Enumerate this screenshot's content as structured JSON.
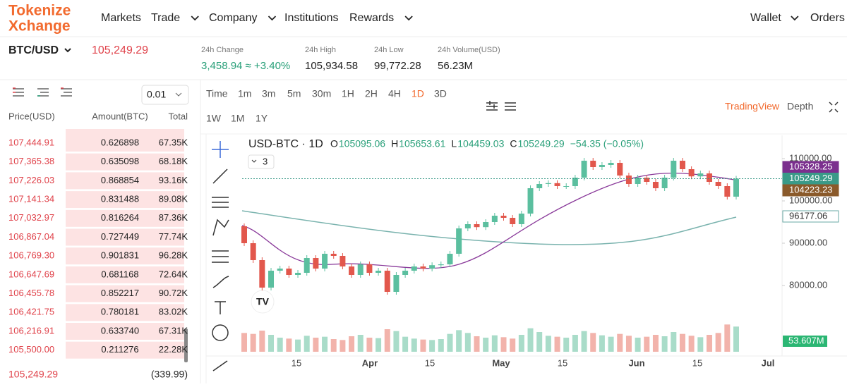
{
  "header": {
    "logo": [
      "Tokenize",
      "Xchange"
    ],
    "nav": [
      {
        "label": "Markets",
        "menu": false
      },
      {
        "label": "Trade",
        "menu": true
      },
      {
        "label": "Company",
        "menu": true
      },
      {
        "label": "Institutions",
        "menu": false
      },
      {
        "label": "Rewards",
        "menu": true
      }
    ],
    "right": [
      {
        "label": "Wallet",
        "menu": true
      },
      {
        "label": "Orders",
        "menu": false
      }
    ]
  },
  "ticker": {
    "pair": "BTC/USD",
    "price": "105,249.29",
    "stats": [
      {
        "label": "24h Change",
        "value": "3,458.94 ≈ +3.40%"
      },
      {
        "label": "24h High",
        "value": "105,934.58"
      },
      {
        "label": "24h Low",
        "value": "99,772.28"
      },
      {
        "label": "24h Volume(USD)",
        "value": "56.23M"
      }
    ]
  },
  "orderbook": {
    "tick": "0.01",
    "columns": [
      "Price(USD)",
      "Amount(BTC)",
      "Total"
    ],
    "rows": [
      [
        "107,444.91",
        "0.626898",
        "67.35K"
      ],
      [
        "107,365.38",
        "0.635098",
        "68.18K"
      ],
      [
        "107,226.03",
        "0.868854",
        "93.16K"
      ],
      [
        "107,141.34",
        "0.831488",
        "89.08K"
      ],
      [
        "107,032.97",
        "0.816264",
        "87.36K"
      ],
      [
        "106,867.04",
        "0.727449",
        "77.74K"
      ],
      [
        "106,769.30",
        "0.901831",
        "96.28K"
      ],
      [
        "106,647.69",
        "0.681168",
        "72.64K"
      ],
      [
        "106,455.78",
        "0.852217",
        "90.72K"
      ],
      [
        "106,421.75",
        "0.780181",
        "83.02K"
      ],
      [
        "106,216.91",
        "0.633740",
        "67.31K"
      ],
      [
        "105,500.00",
        "0.211276",
        "22.28K"
      ]
    ],
    "last_price": "105,249.29",
    "spread": "(339.99)"
  },
  "chart": {
    "intervals": [
      "Time",
      "1m",
      "3m",
      "5m",
      "30m",
      "1H",
      "2H",
      "4H",
      "1D",
      "3D"
    ],
    "intervals_more": [
      "1W",
      "1M",
      "1Y"
    ],
    "active_interval": 8,
    "views": [
      "TradingView",
      "Depth"
    ],
    "symbol": "USD-BTC · 1D",
    "ohlc": [
      {
        "k": "O",
        "v": "105095.06"
      },
      {
        "k": "H",
        "v": "105653.61"
      },
      {
        "k": "L",
        "v": "104459.03"
      },
      {
        "k": "C",
        "v": "105249.29"
      }
    ],
    "change": "−54.35 (−0.05%)",
    "indicators": "3",
    "xlabels": [
      "15",
      "Apr",
      "15",
      "May",
      "15",
      "Jun",
      "15",
      "Jul"
    ],
    "ylim": [
      71000,
      115000
    ],
    "yticks": [
      {
        "value": 110000,
        "label": "110000.00"
      },
      {
        "value": 100000,
        "label": "100000.00"
      },
      {
        "value": 90000,
        "label": "90000.00"
      },
      {
        "value": 80000,
        "label": "80000.00"
      }
    ],
    "badges": [
      {
        "value": 105328.25,
        "color": "#7b2f8e"
      },
      {
        "value": 105249.29,
        "color": "#3a9a88"
      },
      {
        "value": 104223.23,
        "color": "#8a5a2b"
      },
      {
        "value": 96177.06,
        "color": "#6aa8a4"
      }
    ],
    "first_open": 94000,
    "closes": [
      90000,
      86000,
      79500,
      83500,
      84000,
      82500,
      83000,
      86500,
      84000,
      87500,
      87000,
      84500,
      82500,
      85000,
      83000,
      83500,
      78500,
      82500,
      83500,
      84500,
      84000,
      84800,
      85000,
      87500,
      93500,
      94500,
      93800,
      95000,
      96500,
      96000,
      94500,
      97000,
      103000,
      104000,
      104200,
      103500,
      103500,
      105500,
      109500,
      108000,
      108500,
      109000,
      106000,
      104000,
      105500,
      104500,
      103000,
      105500,
      109500,
      107500,
      105800,
      106500,
      104500,
      103500,
      101000,
      105249.29
    ],
    "volume_ylim": [
      0,
      60
    ],
    "volumes": [
      40,
      38,
      45,
      36,
      30,
      28,
      26,
      34,
      30,
      32,
      27,
      25,
      33,
      36,
      30,
      29,
      48,
      44,
      32,
      28,
      26,
      25,
      27,
      38,
      46,
      40,
      33,
      30,
      35,
      31,
      28,
      36,
      50,
      42,
      34,
      32,
      30,
      36,
      44,
      40,
      35,
      32,
      38,
      34,
      30,
      32,
      36,
      33,
      42,
      38,
      34,
      31,
      36,
      40,
      58,
      53.607
    ],
    "volume_label": "53.607M",
    "up_color": "#5bbf9f",
    "down_color": "#e2574c"
  }
}
